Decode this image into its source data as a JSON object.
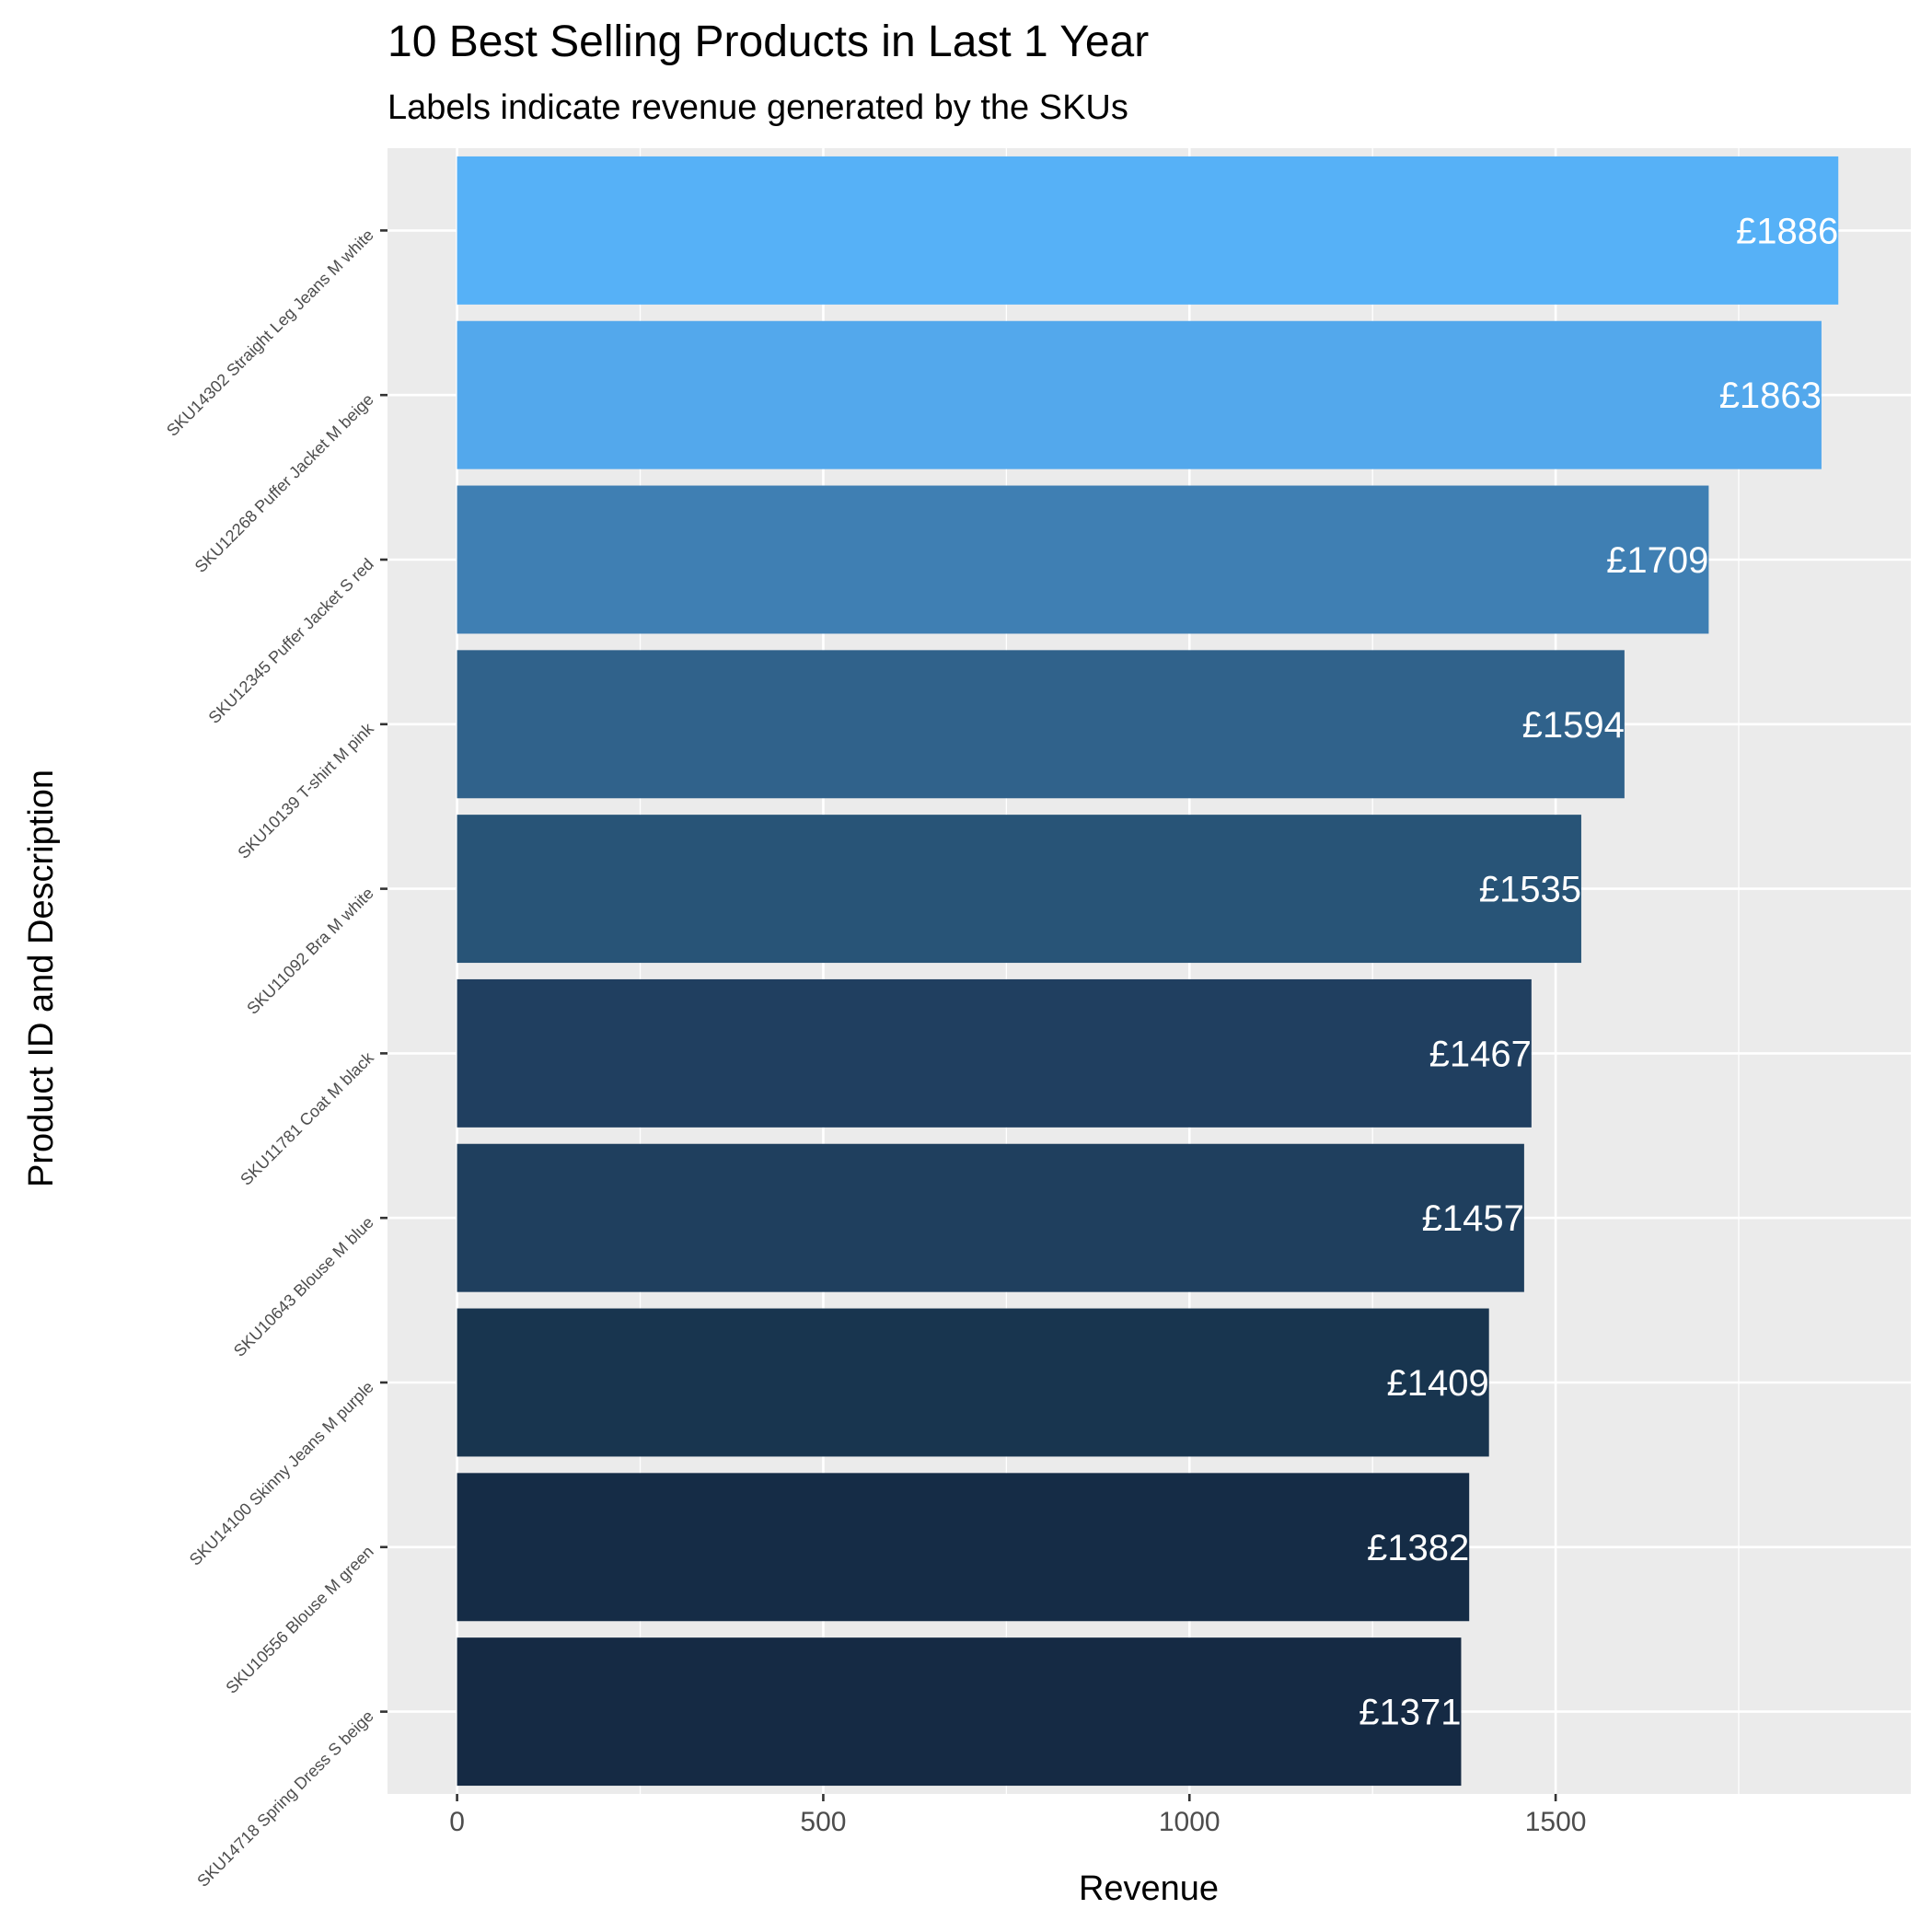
{
  "chart_data": {
    "type": "bar",
    "orientation": "horizontal",
    "title": "10 Best Selling Products in Last 1 Year",
    "subtitle": "Labels indicate revenue generated by the SKUs",
    "xlabel": "Revenue",
    "ylabel": "Product ID and Description",
    "label_prefix": "£",
    "xlim": [
      -95,
      1985
    ],
    "x_ticks": [
      0,
      500,
      1000,
      1500
    ],
    "grid": true,
    "legend": "none",
    "panel_background": "#ebebeb",
    "grid_color": "#ffffff",
    "categories": [
      "SKU14302 Straight Leg Jeans M white",
      "SKU12268 Puffer Jacket M beige",
      "SKU12345 Puffer Jacket S red",
      "SKU10139 T-shirt M pink",
      "SKU11092 Bra M white",
      "SKU11781 Coat M black",
      "SKU10643 Blouse M blue",
      "SKU14100 Skinny Jeans M purple",
      "SKU10556 Blouse M green",
      "SKU14718 Spring Dress S beige"
    ],
    "values": [
      1886,
      1863,
      1709,
      1594,
      1535,
      1467,
      1457,
      1409,
      1382,
      1371
    ],
    "colors": [
      "#56b1f7",
      "#53a8ec",
      "#3f7fb3",
      "#30628b",
      "#285477",
      "#203f60",
      "#1f3f5e",
      "#18354f",
      "#152c46",
      "#152a44"
    ]
  }
}
